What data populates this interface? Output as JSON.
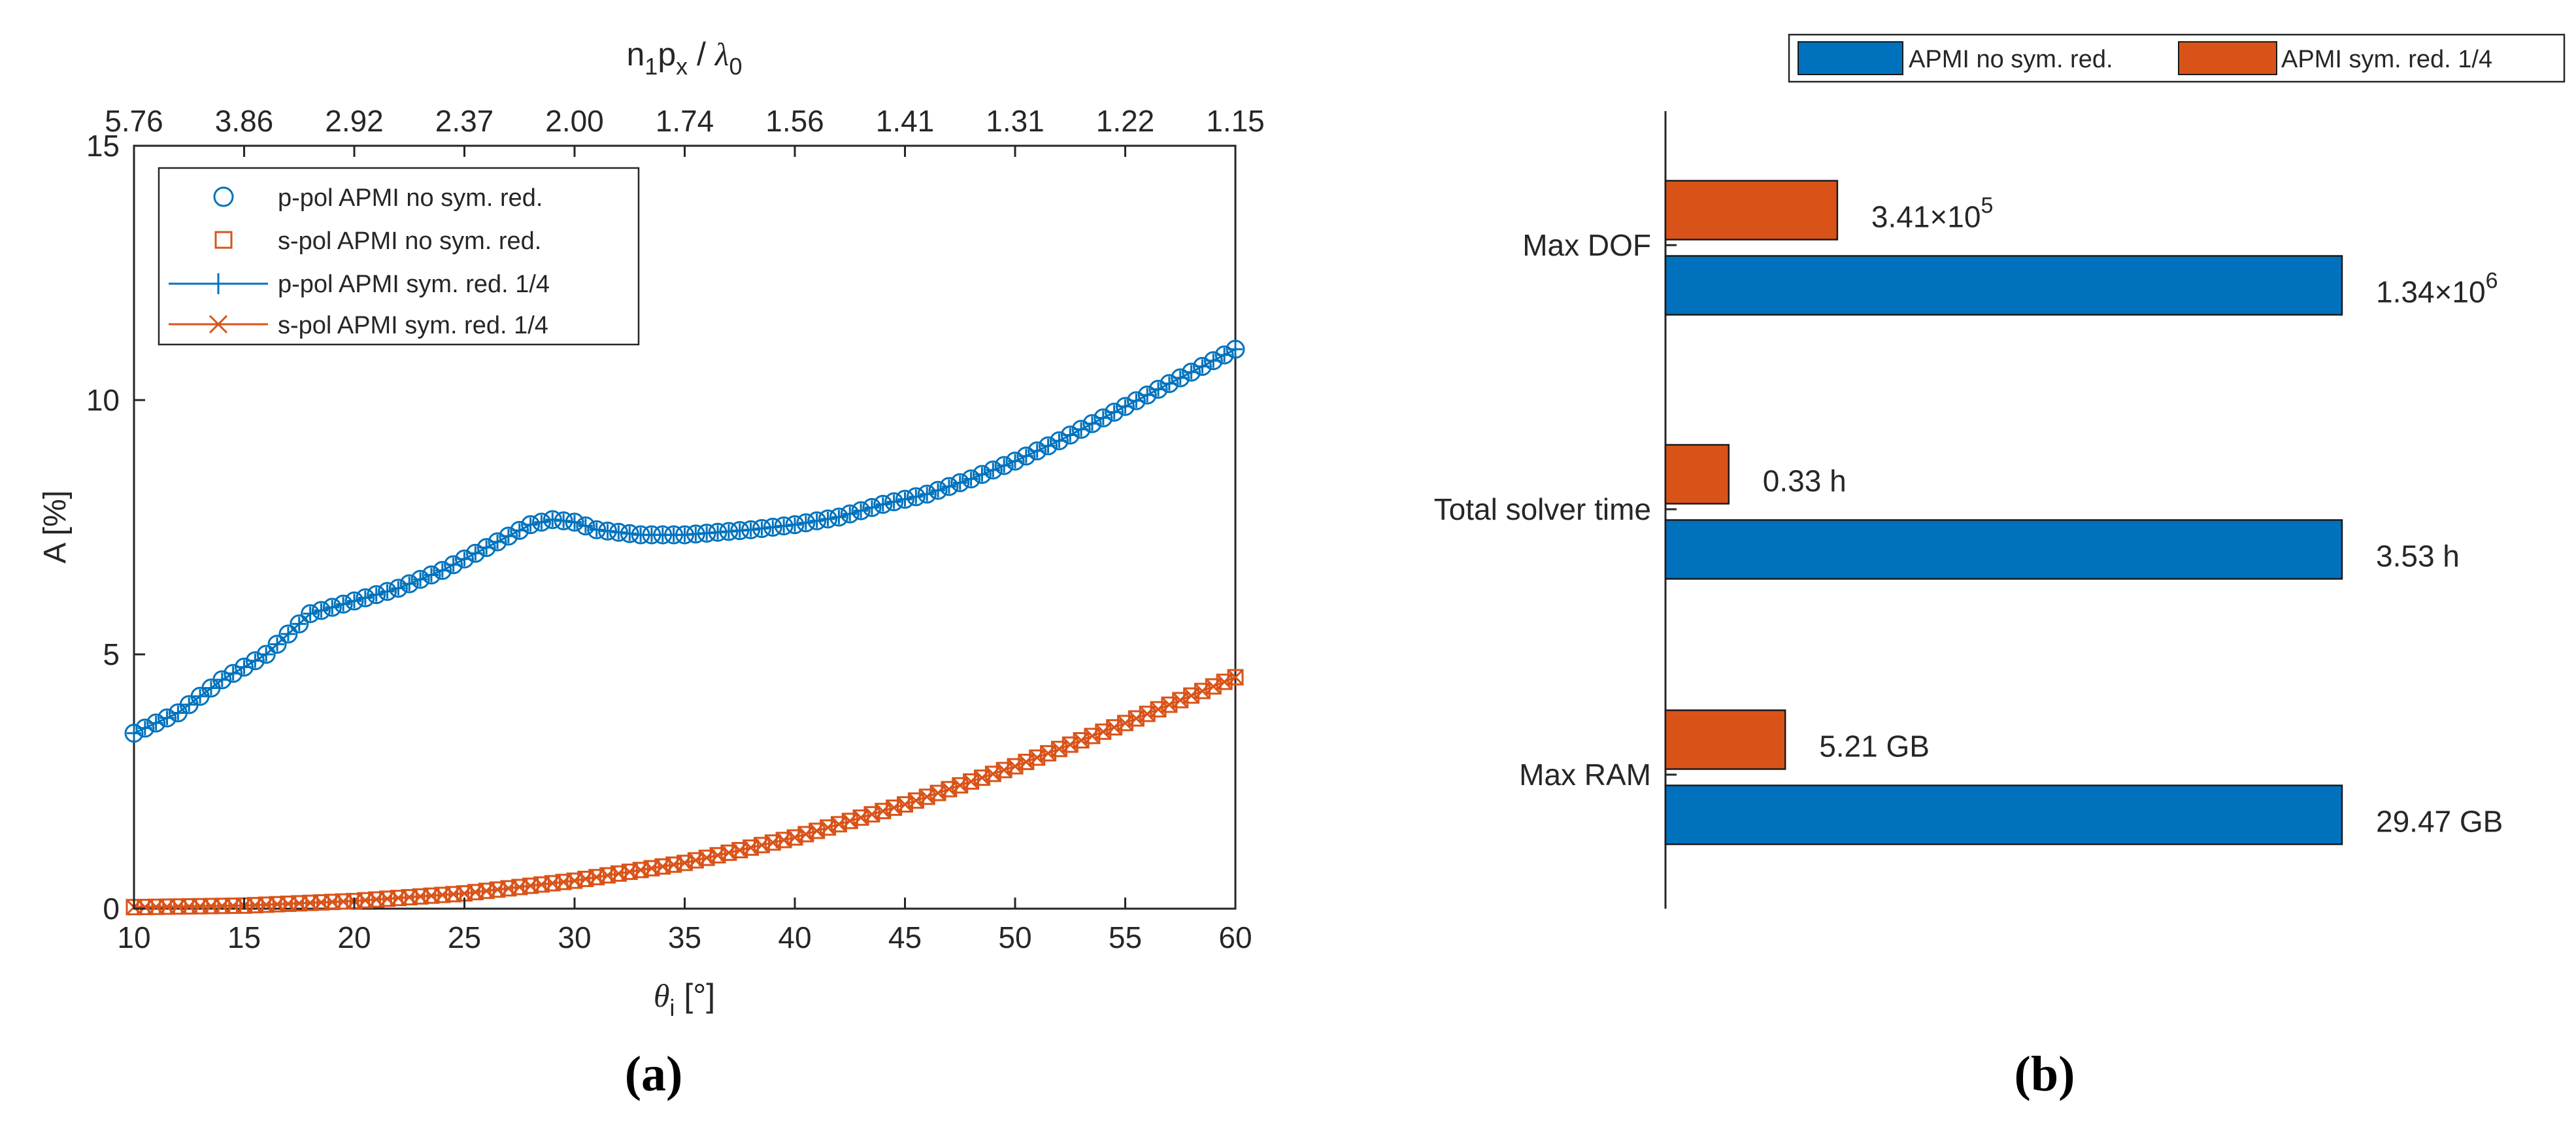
{
  "panels": {
    "a": {
      "label": "(a)"
    },
    "b": {
      "label": "(b)"
    }
  },
  "colors": {
    "blue": "#0072BD",
    "orange": "#D95319",
    "axis": "#262626"
  },
  "chart_data": [
    {
      "type": "scatter",
      "ylabel": "A [%]",
      "xlabel_base": "θ",
      "xlabel_sub": "i",
      "xlabel_unit": "[°]",
      "top_label": {
        "n": "n",
        "n_sub": "1",
        "p": "p",
        "p_sub": "x",
        "slash": " / ",
        "lambda": "λ",
        "lambda_sub": "0"
      },
      "xlim": [
        10,
        60
      ],
      "ylim": [
        0,
        15
      ],
      "xticks": [
        10,
        15,
        20,
        25,
        30,
        35,
        40,
        45,
        50,
        55,
        60
      ],
      "xtick_labels": [
        "10",
        "15",
        "20",
        "25",
        "30",
        "35",
        "40",
        "45",
        "50",
        "55",
        "60"
      ],
      "yticks": [
        0,
        5,
        10,
        15
      ],
      "ytick_labels": [
        "0",
        "5",
        "10",
        "15"
      ],
      "top_ticks": [
        10,
        15,
        20,
        25,
        30,
        35,
        40,
        45,
        50,
        55,
        60
      ],
      "top_tick_labels": [
        "5.76",
        "3.86",
        "2.92",
        "2.37",
        "2.00",
        "1.74",
        "1.56",
        "1.41",
        "1.31",
        "1.22",
        "1.15"
      ],
      "grid": false,
      "legend_position": "top-left",
      "x_step": 0.5,
      "series": [
        {
          "name": "p-pol APMI no sym. red.",
          "marker": "circle",
          "color": "#0072BD",
          "points": [
            [
              10,
              3.45
            ],
            [
              12,
              3.85
            ],
            [
              14,
              4.5
            ],
            [
              16,
              5.0
            ],
            [
              18,
              5.8
            ],
            [
              20,
              6.05
            ],
            [
              22,
              6.3
            ],
            [
              24,
              6.65
            ],
            [
              26,
              7.1
            ],
            [
              28,
              7.55
            ],
            [
              29,
              7.65
            ],
            [
              30,
              7.6
            ],
            [
              31,
              7.45
            ],
            [
              33,
              7.35
            ],
            [
              35,
              7.35
            ],
            [
              38,
              7.45
            ],
            [
              40,
              7.55
            ],
            [
              42,
              7.7
            ],
            [
              44,
              7.95
            ],
            [
              46,
              8.15
            ],
            [
              48,
              8.45
            ],
            [
              50,
              8.8
            ],
            [
              52,
              9.2
            ],
            [
              54,
              9.65
            ],
            [
              56,
              10.1
            ],
            [
              58,
              10.55
            ],
            [
              60,
              11.0
            ]
          ]
        },
        {
          "name": "s-pol APMI no sym. red.",
          "marker": "square",
          "color": "#D95319",
          "points": [
            [
              10,
              0.03
            ],
            [
              15,
              0.06
            ],
            [
              20,
              0.15
            ],
            [
              25,
              0.3
            ],
            [
              30,
              0.55
            ],
            [
              35,
              0.9
            ],
            [
              40,
              1.4
            ],
            [
              45,
              2.05
            ],
            [
              50,
              2.8
            ],
            [
              55,
              3.65
            ],
            [
              60,
              4.55
            ]
          ]
        },
        {
          "name": "p-pol APMI sym. red. 1/4",
          "marker": "plus-line",
          "color": "#0072BD",
          "points": [
            [
              10,
              3.45
            ],
            [
              12,
              3.85
            ],
            [
              14,
              4.5
            ],
            [
              16,
              5.0
            ],
            [
              18,
              5.8
            ],
            [
              20,
              6.05
            ],
            [
              22,
              6.3
            ],
            [
              24,
              6.65
            ],
            [
              26,
              7.1
            ],
            [
              28,
              7.55
            ],
            [
              29,
              7.65
            ],
            [
              30,
              7.6
            ],
            [
              31,
              7.45
            ],
            [
              33,
              7.35
            ],
            [
              35,
              7.35
            ],
            [
              38,
              7.45
            ],
            [
              40,
              7.55
            ],
            [
              42,
              7.7
            ],
            [
              44,
              7.95
            ],
            [
              46,
              8.15
            ],
            [
              48,
              8.45
            ],
            [
              50,
              8.8
            ],
            [
              52,
              9.2
            ],
            [
              54,
              9.65
            ],
            [
              56,
              10.1
            ],
            [
              58,
              10.55
            ],
            [
              60,
              11.0
            ]
          ]
        },
        {
          "name": "s-pol APMI sym. red. 1/4",
          "marker": "x-line",
          "color": "#D95319",
          "points": [
            [
              10,
              0.03
            ],
            [
              15,
              0.06
            ],
            [
              20,
              0.15
            ],
            [
              25,
              0.3
            ],
            [
              30,
              0.55
            ],
            [
              35,
              0.9
            ],
            [
              40,
              1.4
            ],
            [
              45,
              2.05
            ],
            [
              50,
              2.8
            ],
            [
              55,
              3.65
            ],
            [
              60,
              4.55
            ]
          ]
        }
      ]
    },
    {
      "type": "bar",
      "orientation": "horizontal",
      "categories": [
        "Max DOF",
        "Total solver time",
        "Max RAM"
      ],
      "legend_position": "top",
      "series": [
        {
          "name": "APMI no sym. red.",
          "color": "#0072BD",
          "values": [
            1.0,
            1.0,
            1.0
          ],
          "value_labels": [
            {
              "main": "1.34×10",
              "exp": "6"
            },
            {
              "main": "3.53 h",
              "exp": ""
            },
            {
              "main": "29.47 GB",
              "exp": ""
            }
          ]
        },
        {
          "name": "APMI sym. red. 1/4",
          "color": "#D95319",
          "values": [
            0.254,
            0.0935,
            0.177
          ],
          "value_labels": [
            {
              "main": "3.41×10",
              "exp": "5"
            },
            {
              "main": "0.33 h",
              "exp": ""
            },
            {
              "main": "5.21 GB",
              "exp": ""
            }
          ]
        }
      ]
    }
  ]
}
